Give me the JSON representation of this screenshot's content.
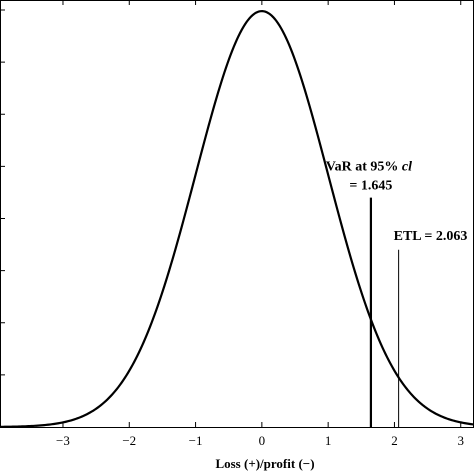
{
  "chart_data": {
    "type": "line",
    "xlabel": "Loss (+)/profit (−)",
    "xlim": [
      -3.95,
      3.2
    ],
    "ylim": [
      0,
      0.4
    ],
    "x_ticks": [
      {
        "value": -3,
        "label": "−3"
      },
      {
        "value": -2,
        "label": "−2"
      },
      {
        "value": -1,
        "label": "−1"
      },
      {
        "value": 0,
        "label": "0"
      },
      {
        "value": 1,
        "label": "1"
      },
      {
        "value": 2,
        "label": "2"
      },
      {
        "value": 3,
        "label": "3"
      }
    ],
    "y_tick_count": 9,
    "series": [
      {
        "distribution": "standard normal density",
        "x": [
          -3.95,
          -3.5,
          -3.0,
          -2.5,
          -2.0,
          -1.5,
          -1.0,
          -0.5,
          0.0,
          0.5,
          1.0,
          1.5,
          2.0,
          2.5,
          3.0,
          3.2
        ],
        "y": [
          0.0002,
          0.0009,
          0.0044,
          0.0175,
          0.054,
          0.1295,
          0.242,
          0.3521,
          0.3989,
          0.3521,
          0.242,
          0.1295,
          0.054,
          0.0175,
          0.0044,
          0.0024
        ]
      }
    ],
    "annotations": [
      {
        "x": 1.645,
        "line_top_y": 0.22,
        "label_lines": [
          "VaR at 95% ",
          "cl",
          "= 1.645"
        ],
        "line_weight": "thick"
      },
      {
        "x": 2.063,
        "line_top_y": 0.17,
        "label_lines": [
          "ETL = 2.063"
        ],
        "line_weight": "thin"
      }
    ]
  }
}
